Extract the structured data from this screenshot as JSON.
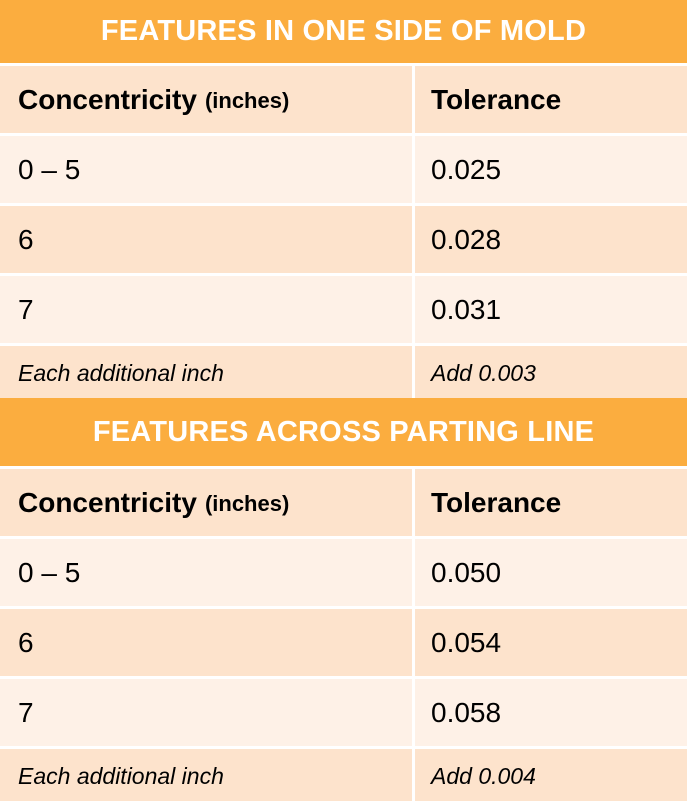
{
  "sections": [
    {
      "title": "FEATURES IN ONE SIDE OF MOLD",
      "header": {
        "col1": "Concentricity",
        "col1_unit": "(inches)",
        "col2": "Tolerance"
      },
      "rows": [
        {
          "range": "0 – 5",
          "tolerance": "0.025"
        },
        {
          "range": "6",
          "tolerance": "0.028"
        },
        {
          "range": "7",
          "tolerance": "0.031"
        },
        {
          "range": "Each additional inch",
          "tolerance": "Add 0.003"
        }
      ]
    },
    {
      "title": "FEATURES ACROSS PARTING LINE",
      "header": {
        "col1": "Concentricity",
        "col1_unit": "(inches)",
        "col2": "Tolerance"
      },
      "rows": [
        {
          "range": "0 – 5",
          "tolerance": "0.050"
        },
        {
          "range": "6",
          "tolerance": "0.054"
        },
        {
          "range": "7",
          "tolerance": "0.058"
        },
        {
          "range": "Each additional inch",
          "tolerance": "Add 0.004"
        }
      ]
    }
  ],
  "colors": {
    "header_orange": "#fbad3f",
    "row_dark": "#fde3cc",
    "row_light": "#fef1e7",
    "divider": "#ffffff"
  }
}
